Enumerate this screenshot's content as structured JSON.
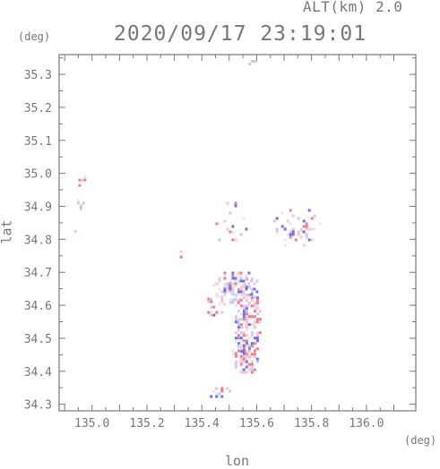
{
  "header": {
    "altitude": "ALT(km) 2.0",
    "timestamp": "2020/09/17 23:19:01"
  },
  "axes": {
    "lat_unit": "(deg)",
    "lon_unit": "(deg)",
    "xlabel": "lon",
    "ylabel": "lat"
  },
  "chart_data": {
    "type": "heatmap",
    "xlabel": "lon",
    "ylabel": "lat",
    "xlim": [
      134.88,
      136.18
    ],
    "ylim": [
      34.28,
      35.36
    ],
    "x_ticks": [
      "135.0",
      "135.2",
      "135.4",
      "135.6",
      "135.8",
      "136.0"
    ],
    "y_ticks": [
      "35.3",
      "35.2",
      "35.1",
      "35.0",
      "34.9",
      "34.8",
      "34.7",
      "34.6",
      "34.5",
      "34.4",
      "34.3"
    ],
    "grid": false,
    "colors": {
      "positive": "#ee7f8a",
      "negative": "#6d70f2",
      "light_pos": "#f7c6cc",
      "light_neg": "#c7c9fa",
      "neutral": "#e6e6ee"
    },
    "echo_clusters": [
      {
        "lon": 135.56,
        "lat": 34.56,
        "rlon": 0.05,
        "rlat": 0.14,
        "density": 0.65
      },
      {
        "lon": 135.52,
        "lat": 34.66,
        "rlon": 0.09,
        "rlat": 0.05,
        "density": 0.55
      },
      {
        "lon": 135.55,
        "lat": 34.44,
        "rlon": 0.05,
        "rlat": 0.05,
        "density": 0.5
      },
      {
        "lon": 135.5,
        "lat": 34.84,
        "rlon": 0.06,
        "rlat": 0.06,
        "density": 0.12
      },
      {
        "lon": 135.74,
        "lat": 34.84,
        "rlon": 0.1,
        "rlat": 0.06,
        "density": 0.25
      },
      {
        "lon": 135.45,
        "lat": 34.62,
        "rlon": 0.04,
        "rlat": 0.06,
        "density": 0.18
      },
      {
        "lon": 134.96,
        "lat": 34.98,
        "rlon": 0.02,
        "rlat": 0.02,
        "density": 0.6
      },
      {
        "lon": 134.95,
        "lat": 34.91,
        "rlon": 0.015,
        "rlat": 0.02,
        "density": 0.4
      },
      {
        "lon": 134.94,
        "lat": 34.83,
        "rlon": 0.015,
        "rlat": 0.015,
        "density": 0.4
      },
      {
        "lon": 135.33,
        "lat": 34.76,
        "rlon": 0.02,
        "rlat": 0.015,
        "density": 0.5
      },
      {
        "lon": 135.45,
        "lat": 34.34,
        "rlon": 0.05,
        "rlat": 0.02,
        "density": 0.35
      },
      {
        "lon": 135.49,
        "lat": 34.91,
        "rlon": 0.04,
        "rlat": 0.02,
        "density": 0.25
      },
      {
        "lon": 135.57,
        "lat": 35.34,
        "rlon": 0.04,
        "rlat": 0.02,
        "density": 0.25
      }
    ]
  }
}
